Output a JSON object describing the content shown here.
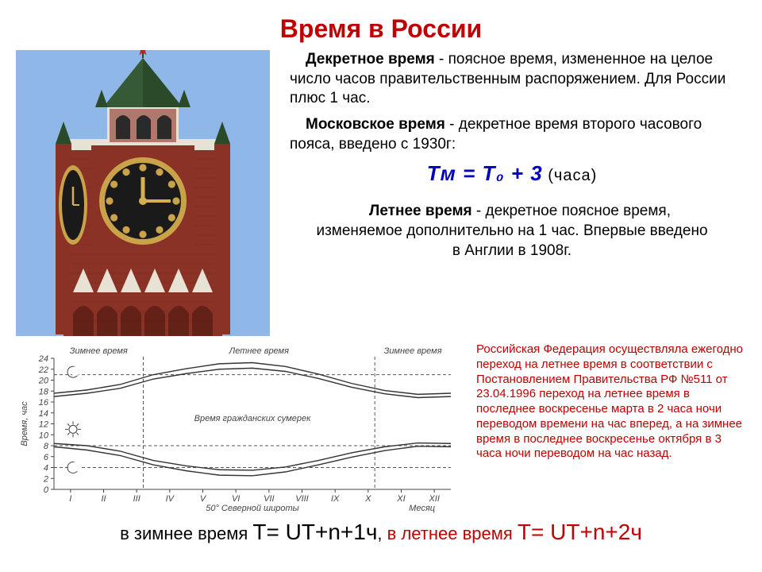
{
  "title": "Время в России",
  "para1_strong": "Декретное время",
  "para1_rest": " - поясное время, измененное на целое число часов правительственным распоряжением. Для России плюс 1 час.",
  "para2_strong": "Московское время",
  "para2_rest": " - декретное время второго часового пояса, введено с 1930г:",
  "formula_main": "Tм = T₀ + 3",
  "formula_suffix": " (часа)",
  "summer_strong": "Летнее время",
  "summer_rest": " - декретное поясное время, изменяемое дополнительно на 1 час. Впервые введено в Англии в 1908г.",
  "note_text": "Российская Федерация осуществляла ежегодно переход на летнее время в соответствии с Постановлением Правительства РФ №511 от 23.04.1996 переход на летнее время в последнее воскресенье марта в 2 часа ночи переводом времени на час вперед, а на зимнее время в последнее воскресенье октября в 3 часа ночи переводом на час назад.",
  "bottom_winter_label": "в зимнее время ",
  "bottom_winter_formula": "T= UT+n+1ч",
  "bottom_sep": ", ",
  "bottom_summer_label": "в летнее время ",
  "bottom_summer_formula": "T= UT+n+2ч",
  "tower": {
    "sky_color": "#8fb8e8",
    "brick_color": "#8a3226",
    "brick_dark": "#5c1f16",
    "roof_color": "#2a4a2a",
    "roof_light": "#3f6a3f",
    "clock_rim": "#c9a24a",
    "clock_face": "#1a1a1a",
    "clock_hand": "#d4b050",
    "white_trim": "#e8e2d4",
    "star_color": "#c92020"
  },
  "chart": {
    "title_winter": "Зимнее время",
    "title_summer": "Летнее время",
    "y_label": "Время, час",
    "x_label": "Месяц",
    "sub_label": "50° Северной широты",
    "twilight_label": "Время гражданских сумерек",
    "y_ticks": [
      0,
      2,
      4,
      6,
      8,
      10,
      12,
      14,
      16,
      18,
      20,
      22,
      24
    ],
    "x_ticks": [
      "I",
      "II",
      "III",
      "IV",
      "V",
      "VI",
      "VII",
      "VIII",
      "IX",
      "X",
      "XI",
      "XII"
    ],
    "dash_lines_y": [
      21,
      8,
      4
    ],
    "upper_curve": [
      [
        0,
        17.0
      ],
      [
        1,
        17.6
      ],
      [
        2,
        18.5
      ],
      [
        3,
        20.2
      ],
      [
        4,
        21.2
      ],
      [
        5,
        22.0
      ],
      [
        6,
        22.2
      ],
      [
        7,
        21.6
      ],
      [
        8,
        20.3
      ],
      [
        9,
        18.7
      ],
      [
        10,
        17.5
      ],
      [
        11,
        16.8
      ],
      [
        12,
        17.0
      ]
    ],
    "lower_curve": [
      [
        0,
        8.4
      ],
      [
        1,
        8.0
      ],
      [
        2,
        7.0
      ],
      [
        3,
        5.3
      ],
      [
        4,
        4.3
      ],
      [
        5,
        3.6
      ],
      [
        6,
        3.5
      ],
      [
        7,
        4.1
      ],
      [
        8,
        5.3
      ],
      [
        9,
        6.7
      ],
      [
        10,
        7.8
      ],
      [
        11,
        8.5
      ],
      [
        12,
        8.4
      ]
    ],
    "upper_outer": [
      [
        0,
        17.6
      ],
      [
        1,
        18.2
      ],
      [
        2,
        19.2
      ],
      [
        3,
        21.0
      ],
      [
        4,
        22.1
      ],
      [
        5,
        23.0
      ],
      [
        6,
        23.2
      ],
      [
        7,
        22.5
      ],
      [
        8,
        21.1
      ],
      [
        9,
        19.4
      ],
      [
        10,
        18.1
      ],
      [
        11,
        17.4
      ],
      [
        12,
        17.6
      ]
    ],
    "lower_outer": [
      [
        0,
        7.8
      ],
      [
        1,
        7.2
      ],
      [
        2,
        6.2
      ],
      [
        3,
        4.5
      ],
      [
        4,
        3.4
      ],
      [
        5,
        2.6
      ],
      [
        6,
        2.5
      ],
      [
        7,
        3.2
      ],
      [
        8,
        4.5
      ],
      [
        9,
        5.9
      ],
      [
        10,
        7.1
      ],
      [
        11,
        7.9
      ],
      [
        12,
        7.8
      ]
    ],
    "axis_color": "#444444",
    "curve_color": "#333333",
    "dash_color": "#555555"
  }
}
